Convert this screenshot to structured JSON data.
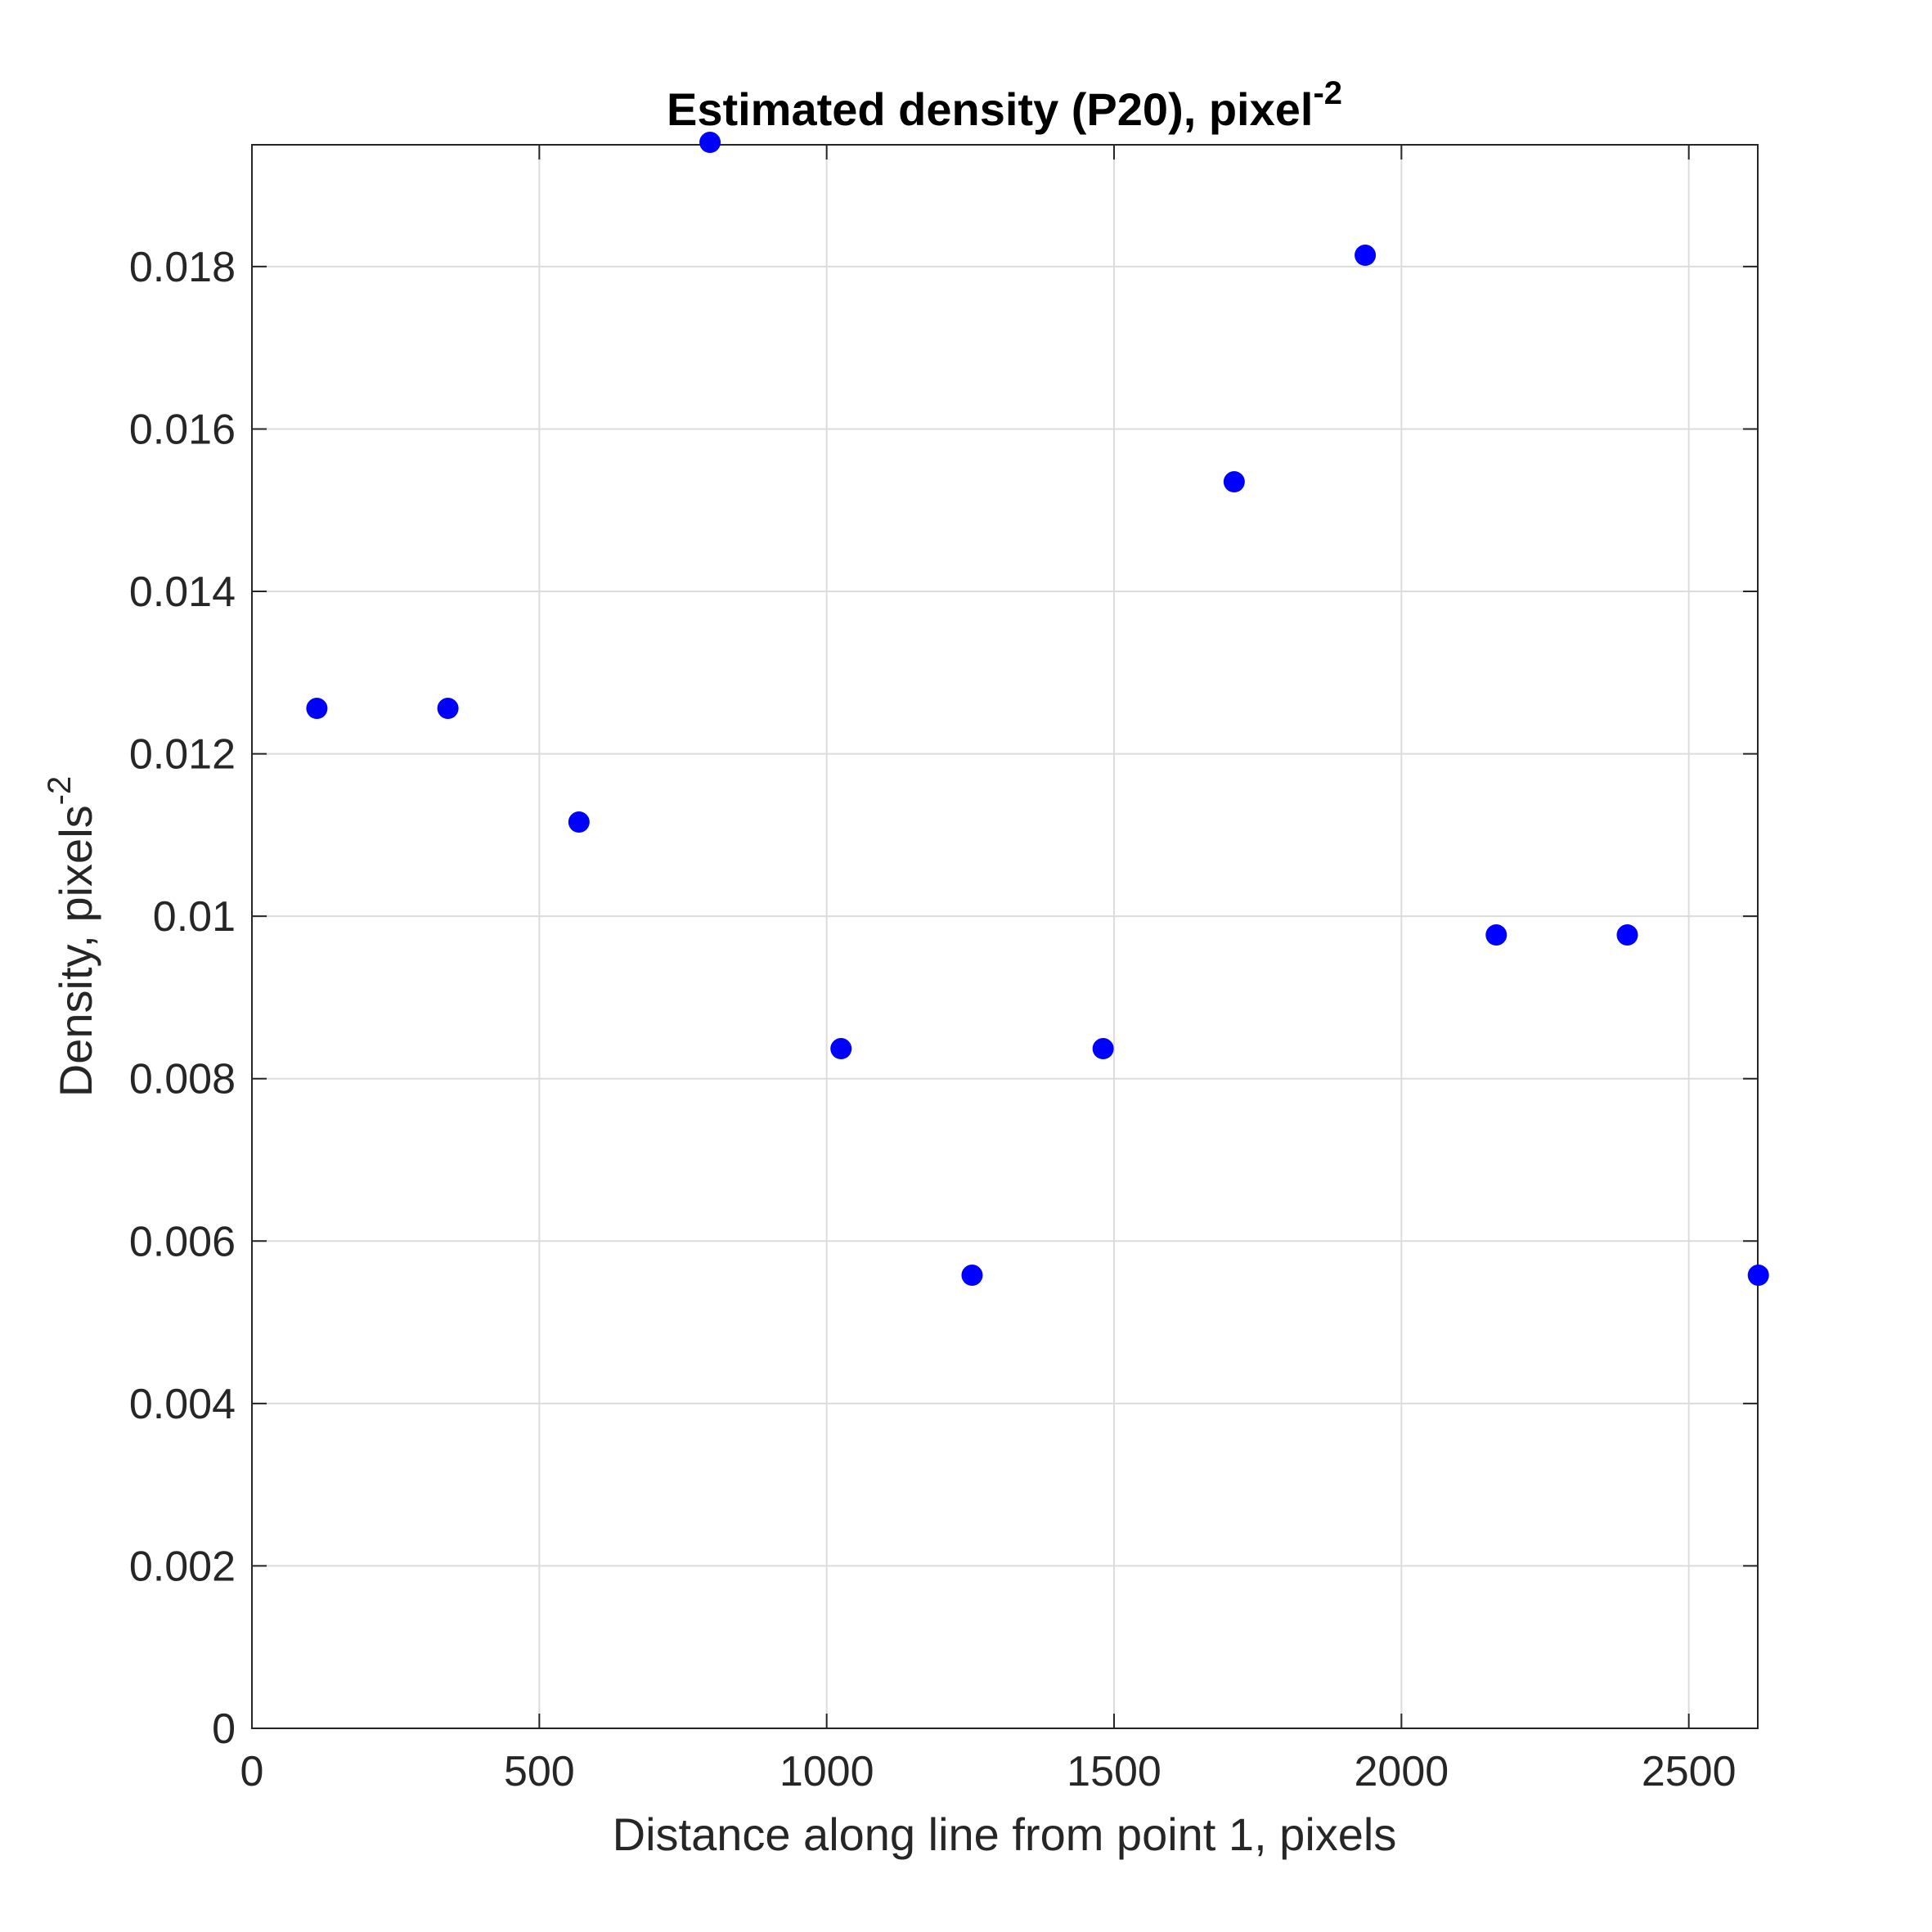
{
  "chart_data": {
    "type": "scatter",
    "title": "Estimated density (P20), pixel",
    "title_superscript": "-2",
    "xlabel": "Distance along line from point 1, pixels",
    "ylabel": "Density, pixels",
    "ylabel_superscript": "-2",
    "xlim": [
      0,
      2620
    ],
    "ylim": [
      0,
      0.0195
    ],
    "xticks": [
      0,
      500,
      1000,
      1500,
      2000,
      2500
    ],
    "xtick_labels": [
      "0",
      "500",
      "1000",
      "1500",
      "2000",
      "2500"
    ],
    "yticks": [
      0,
      0.002,
      0.004,
      0.006,
      0.008,
      0.01,
      0.012,
      0.014,
      0.016,
      0.018
    ],
    "ytick_labels": [
      "0",
      "0.002",
      "0.004",
      "0.006",
      "0.008",
      "0.01",
      "0.012",
      "0.014",
      "0.016",
      "0.018"
    ],
    "grid": true,
    "marker_color": "#0000ff",
    "x": [
      113,
      341,
      569,
      797,
      1025,
      1253,
      1481,
      1709,
      1937,
      2165,
      2393,
      2621
    ],
    "y": [
      0.01256,
      0.01256,
      0.01116,
      0.01953,
      0.00837,
      0.00558,
      0.00837,
      0.01535,
      0.01814,
      0.00977,
      0.00977,
      0.00558
    ]
  }
}
